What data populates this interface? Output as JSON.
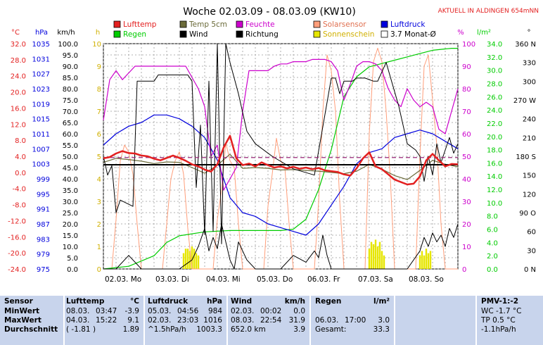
{
  "title": "Woche 02.03.09 - 08.03.09 (KW10)",
  "station": "AKTUELL IN ALDINGEN 654mNN",
  "colors": {
    "temp": "#e32020",
    "temp5": "#6b6b3a",
    "humidity": "#cc00cc",
    "solar": "#ff9e7a",
    "pressure": "#0000dd",
    "rain": "#00cc00",
    "wind": "#000000",
    "direction": "#000000",
    "sunshine": "#e6e600",
    "monthavg": "#9a2a7a"
  },
  "axes": {
    "c_unit": "°C",
    "hpa_unit": "hPa",
    "kmh_unit": "km/h",
    "h_unit": "h",
    "pct_unit": "%",
    "rain_unit": "l/m²",
    "deg_unit": "°",
    "c_ticks": [
      "32.0",
      "28.0",
      "24.0",
      "20.0",
      "16.0",
      "12.0",
      "8.0",
      "4.0",
      "0.0",
      "-4.0",
      "-8.0",
      "-12.0",
      "-16.0",
      "-20.0",
      "-24.0"
    ],
    "hpa_ticks": [
      "1035",
      "1031",
      "1027",
      "1023",
      "1019",
      "1015",
      "1011",
      "1007",
      "1003",
      "999",
      "995",
      "991",
      "987",
      "983",
      "979",
      "975"
    ],
    "kmh_ticks": [
      "100.0",
      "95.0",
      "90.0",
      "85.0",
      "80.0",
      "75.0",
      "70.0",
      "65.0",
      "60.0",
      "55.0",
      "50.0",
      "45.0",
      "40.0",
      "35.0",
      "30.0",
      "25.0",
      "20.0",
      "15.0",
      "10.0",
      "5.0",
      "0.0"
    ],
    "h_ticks": [
      "10",
      "9",
      "8",
      "7",
      "6",
      "5",
      "4",
      "3",
      "2",
      "1",
      "0"
    ],
    "pct_ticks": [
      "100",
      "90",
      "80",
      "70",
      "60",
      "50",
      "40",
      "30",
      "20",
      "10",
      "0"
    ],
    "rain_ticks": [
      "34.0",
      "32.0",
      "30.0",
      "28.0",
      "26.0",
      "24.0",
      "22.0",
      "20.0",
      "18.0",
      "16.0",
      "14.0",
      "12.0",
      "10.0",
      "8.0",
      "6.0",
      "4.0",
      "2.0",
      "0.0"
    ],
    "deg_ticks": [
      "360 N",
      "330",
      "300",
      "270 W",
      "240",
      "210",
      "180 S",
      "150",
      "120",
      "90 O",
      "60",
      "30",
      "0 N"
    ],
    "day_labels": [
      "02.03. Mo",
      "03.03. Di",
      "04.03. Mi",
      "05.03. Do",
      "06.03. Fr",
      "07.03. Sa",
      "08.03. So"
    ]
  },
  "legend": [
    {
      "label": "Lufttemp",
      "color": "#e32020",
      "text_color": "#e32020"
    },
    {
      "label": "Regen",
      "color": "#00cc00",
      "text_color": "#00cc00"
    },
    {
      "label": "Temp 5cm",
      "color": "#6b6b3a",
      "text_color": "#6b6b3a"
    },
    {
      "label": "Wind",
      "color": "#000000",
      "text_color": "#000000"
    },
    {
      "label": "Feuchte",
      "color": "#cc00cc",
      "text_color": "#cc00cc"
    },
    {
      "label": "Richtung",
      "color": "#000000",
      "text_color": "#000000"
    },
    {
      "label": "Solarsensor",
      "color": "#ff9e7a",
      "text_color": "#e07050"
    },
    {
      "label": "Sonnenschein",
      "color": "#e6e600",
      "text_color": "#d0b000"
    },
    {
      "label": "Luftdruck",
      "color": "#0000dd",
      "text_color": "#0000dd"
    },
    {
      "label": "3.7 Monat-Ø",
      "color": "#ffffff",
      "text_color": "#000000"
    }
  ],
  "chart_data": {
    "type": "line",
    "title": "Woche 02.03.09 - 08.03.09 (KW10)",
    "x_unit": "hours since 02.03. 00:00",
    "xlim": [
      0,
      168
    ],
    "x_day_labels": [
      "02.03. Mo",
      "03.03. Di",
      "04.03. Mi",
      "05.03. Do",
      "06.03. Fr",
      "07.03. Sa",
      "08.03. So"
    ],
    "series": [
      {
        "name": "Lufttemp",
        "unit": "°C",
        "x": [
          0,
          3,
          6,
          9,
          12,
          15,
          18,
          21,
          24,
          27,
          30,
          33,
          36,
          39,
          42,
          45,
          48,
          51,
          54,
          57,
          60,
          63,
          66,
          69,
          72,
          75,
          78,
          81,
          84,
          87,
          90,
          93,
          96,
          99,
          102,
          105,
          108,
          111,
          114,
          117,
          120,
          123,
          126,
          129,
          132,
          135,
          138,
          141,
          144,
          147,
          150,
          153,
          156,
          159,
          162,
          165,
          168
        ],
        "y": [
          3.5,
          3.8,
          4.7,
          5.3,
          4.8,
          4.7,
          4.2,
          4.0,
          3.4,
          3.0,
          3.6,
          4.2,
          3.6,
          2.9,
          2.0,
          1.5,
          0.7,
          0.2,
          2.0,
          6.2,
          9.1,
          3.5,
          1.8,
          2.2,
          1.5,
          2.5,
          1.8,
          1.2,
          1.5,
          1.0,
          1.4,
          0.9,
          1.2,
          0.8,
          1.1,
          0.5,
          0.3,
          0.1,
          -0.5,
          -0.8,
          1.0,
          3.5,
          5.0,
          1.5,
          0.8,
          -0.5,
          -1.8,
          -2.4,
          -3.0,
          -2.8,
          -1.0,
          3.0,
          4.6,
          3.0,
          1.5,
          2.1,
          2.0
        ]
      },
      {
        "name": "Temp 5cm",
        "unit": "°C",
        "x": [
          0,
          6,
          12,
          18,
          24,
          30,
          36,
          42,
          48,
          54,
          60,
          66,
          72,
          78,
          84,
          90,
          96,
          102,
          108,
          114,
          120,
          126,
          132,
          138,
          144,
          150,
          156,
          162,
          168
        ],
        "y": [
          2.5,
          3.5,
          3.2,
          2.8,
          2.2,
          2.6,
          2.5,
          1.2,
          -0.2,
          1.8,
          4.5,
          1.0,
          1.2,
          1.0,
          0.6,
          0.7,
          0.5,
          0.3,
          0.0,
          -0.3,
          0.3,
          2.0,
          0.8,
          -0.8,
          -1.8,
          0.5,
          3.0,
          2.0,
          1.4
        ]
      },
      {
        "name": "Feuchte",
        "unit": "%",
        "x": [
          0,
          3,
          6,
          9,
          12,
          15,
          18,
          21,
          24,
          27,
          30,
          33,
          36,
          39,
          42,
          45,
          48,
          51,
          54,
          57,
          60,
          63,
          66,
          69,
          72,
          75,
          78,
          81,
          84,
          87,
          90,
          93,
          96,
          99,
          102,
          105,
          108,
          111,
          114,
          117,
          120,
          123,
          126,
          129,
          132,
          135,
          138,
          141,
          144,
          147,
          150,
          153,
          156,
          159,
          162,
          165,
          168
        ],
        "y": [
          66,
          84,
          88,
          84,
          87,
          90,
          90,
          90,
          90,
          90,
          90,
          90,
          90,
          90,
          85,
          80,
          72,
          50,
          55,
          35,
          40,
          45,
          70,
          88,
          88,
          88,
          88,
          90,
          91,
          91,
          92,
          92,
          92,
          93,
          93,
          93,
          92,
          88,
          75,
          82,
          90,
          92,
          92,
          91,
          88,
          80,
          75,
          72,
          80,
          75,
          72,
          74,
          72,
          62,
          60,
          70,
          80
        ]
      },
      {
        "name": "Solarsensor",
        "unit": "%",
        "x": [
          0,
          4,
          6,
          8,
          10,
          12,
          14,
          16,
          18,
          20,
          24,
          28,
          30,
          32,
          34,
          36,
          38,
          40,
          42,
          44,
          48,
          52,
          54,
          56,
          58,
          60,
          62,
          64,
          66,
          68,
          72,
          76,
          78,
          80,
          82,
          84,
          86,
          88,
          90,
          92,
          96,
          100,
          102,
          104,
          106,
          108,
          110,
          112,
          114,
          116,
          120,
          124,
          126,
          128,
          130,
          132,
          134,
          136,
          138,
          140,
          144,
          148,
          150,
          152,
          154,
          156,
          158,
          160,
          162,
          164,
          168
        ],
        "y": [
          0,
          0,
          22,
          48,
          55,
          52,
          42,
          20,
          0,
          0,
          0,
          0,
          20,
          40,
          48,
          52,
          42,
          18,
          0,
          0,
          0,
          0,
          22,
          35,
          56,
          48,
          45,
          20,
          0,
          0,
          0,
          0,
          28,
          42,
          58,
          48,
          45,
          20,
          0,
          0,
          0,
          0,
          30,
          70,
          95,
          88,
          70,
          30,
          0,
          0,
          0,
          0,
          60,
          92,
          98,
          92,
          70,
          40,
          0,
          0,
          0,
          0,
          50,
          90,
          95,
          75,
          55,
          20,
          0,
          0,
          0
        ]
      },
      {
        "name": "Luftdruck",
        "unit": "hPa",
        "x": [
          0,
          6,
          12,
          18,
          24,
          30,
          36,
          42,
          48,
          54,
          60,
          66,
          72,
          78,
          84,
          90,
          96,
          102,
          108,
          114,
          120,
          126,
          132,
          138,
          144,
          150,
          156,
          162,
          168
        ],
        "y": [
          1008,
          1011,
          1013,
          1014,
          1016,
          1016,
          1015,
          1013,
          1010,
          1004,
          994,
          990,
          989,
          987,
          986,
          985,
          984,
          987,
          992,
          997,
          1003,
          1006,
          1007,
          1010,
          1011,
          1012,
          1011,
          1009,
          1007
        ]
      },
      {
        "name": "Regen",
        "unit": "l/m²",
        "x": [
          0,
          6,
          12,
          24,
          30,
          36,
          48,
          60,
          66,
          72,
          84,
          90,
          96,
          102,
          108,
          114,
          120,
          126,
          132,
          138,
          144,
          150,
          156,
          162,
          165,
          168
        ],
        "y": [
          0,
          0.2,
          0.4,
          2.0,
          4.0,
          5.0,
          5.6,
          5.8,
          5.8,
          5.8,
          5.8,
          6.0,
          7.5,
          12,
          18,
          26,
          29,
          30.5,
          31.0,
          31.5,
          32.0,
          32.5,
          33.0,
          33.2,
          33.3,
          33.3
        ]
      },
      {
        "name": "Wind",
        "unit": "km/h",
        "x": [
          0,
          6,
          12,
          18,
          24,
          30,
          36,
          42,
          45,
          48,
          50,
          52,
          54,
          56,
          58,
          60,
          62,
          64,
          66,
          68,
          72,
          78,
          84,
          90,
          96,
          100,
          102,
          104,
          106,
          108,
          114,
          120,
          126,
          132,
          138,
          144,
          150,
          152,
          154,
          156,
          158,
          160,
          162,
          164,
          166,
          168
        ],
        "y": [
          0,
          0,
          6,
          0,
          0,
          0,
          0,
          4,
          10,
          18,
          8,
          14,
          9,
          20,
          12,
          4,
          0,
          12,
          8,
          4,
          0,
          0,
          0,
          6,
          3,
          8,
          5,
          15,
          6,
          0,
          0,
          0,
          0,
          0,
          0,
          0,
          8,
          14,
          10,
          16,
          12,
          15,
          10,
          18,
          14,
          20
        ]
      },
      {
        "name": "Richtung",
        "unit": "°",
        "x": [
          0,
          2,
          4,
          6,
          8,
          14,
          16,
          18,
          20,
          24,
          26,
          30,
          34,
          36,
          38,
          40,
          42,
          44,
          46,
          48,
          50,
          52,
          54,
          56,
          58,
          60,
          64,
          68,
          72,
          80,
          90,
          100,
          108,
          110,
          112,
          114,
          118,
          120,
          124,
          128,
          130,
          134,
          140,
          144,
          148,
          150,
          152,
          154,
          156,
          158,
          160,
          162,
          164,
          166,
          168
        ],
        "y": [
          180,
          150,
          165,
          90,
          110,
          100,
          300,
          300,
          300,
          300,
          310,
          310,
          310,
          310,
          310,
          310,
          300,
          130,
          230,
          55,
          300,
          60,
          360,
          40,
          360,
          330,
          280,
          220,
          200,
          180,
          160,
          150,
          305,
          305,
          280,
          300,
          300,
          305,
          305,
          300,
          300,
          330,
          260,
          200,
          190,
          180,
          140,
          180,
          150,
          200,
          170,
          190,
          210,
          185,
          200
        ]
      },
      {
        "name": "3.7 Monat-Ø",
        "unit": "°C",
        "x": [
          0,
          168
        ],
        "y": [
          3.7,
          3.7
        ]
      }
    ],
    "sunshine_bars": [
      {
        "x": [
          38,
          39,
          40,
          41,
          42,
          43,
          44,
          45
        ],
        "h": [
          0.7,
          0.9,
          0.9,
          0.8,
          1.0,
          0.9,
          0.7,
          0.6
        ]
      },
      {
        "x": [
          126,
          127,
          128,
          129,
          130,
          131,
          132,
          133
        ],
        "h": [
          0.9,
          1.2,
          1.1,
          1.3,
          1.0,
          1.2,
          0.8,
          0.6
        ]
      },
      {
        "x": [
          150,
          151,
          152,
          153,
          154,
          155
        ],
        "h": [
          0.6,
          0.8,
          0.6,
          0.9,
          0.7,
          0.8
        ]
      }
    ],
    "reference_lines": [
      {
        "name": "Lufttemp Durchschnitt",
        "unit": "°C",
        "y": 1.89
      },
      {
        "name": "Luftdruck Durchschnitt",
        "unit": "hPa",
        "y": 1003.3
      }
    ]
  },
  "table": {
    "sensor": {
      "title": "Sensor",
      "rows": [
        "MinWert",
        "MaxWert",
        "Durchschnitt"
      ]
    },
    "lufttemp": {
      "title": "Lufttemp",
      "unit": "°C",
      "rows": [
        [
          "08.03.",
          "03:47",
          "-3.9"
        ],
        [
          "04.03.",
          "15:22",
          "9.1"
        ],
        [
          "( -1.81 )",
          "",
          "1.89"
        ]
      ]
    },
    "luftdruck": {
      "title": "Luftdruck",
      "unit": "hPa",
      "rows": [
        [
          "05.03.",
          "04:56",
          "984"
        ],
        [
          "02.03.",
          "23:03",
          "1016"
        ],
        [
          "^1.5hPa/h",
          "",
          "1003.3"
        ]
      ]
    },
    "wind": {
      "title": "Wind",
      "unit": "km/h",
      "rows": [
        [
          "02.03.",
          "00:02",
          "0.0"
        ],
        [
          "08.03.",
          "22:54",
          "31.9"
        ],
        [
          "652.0 km",
          "",
          "3.9"
        ]
      ]
    },
    "regen": {
      "title": "Regen",
      "unit": "l/m²",
      "rows": [
        [
          "",
          "",
          ""
        ],
        [
          "06.03.",
          "17:00",
          "3.0"
        ],
        [
          "Gesamt:",
          "",
          "33.3"
        ]
      ]
    },
    "pmv": {
      "title": "PMV-1:-2",
      "rows": [
        "WC -1.7 °C",
        "TP 0.5 °C",
        "-1.1hPa/h"
      ]
    }
  }
}
